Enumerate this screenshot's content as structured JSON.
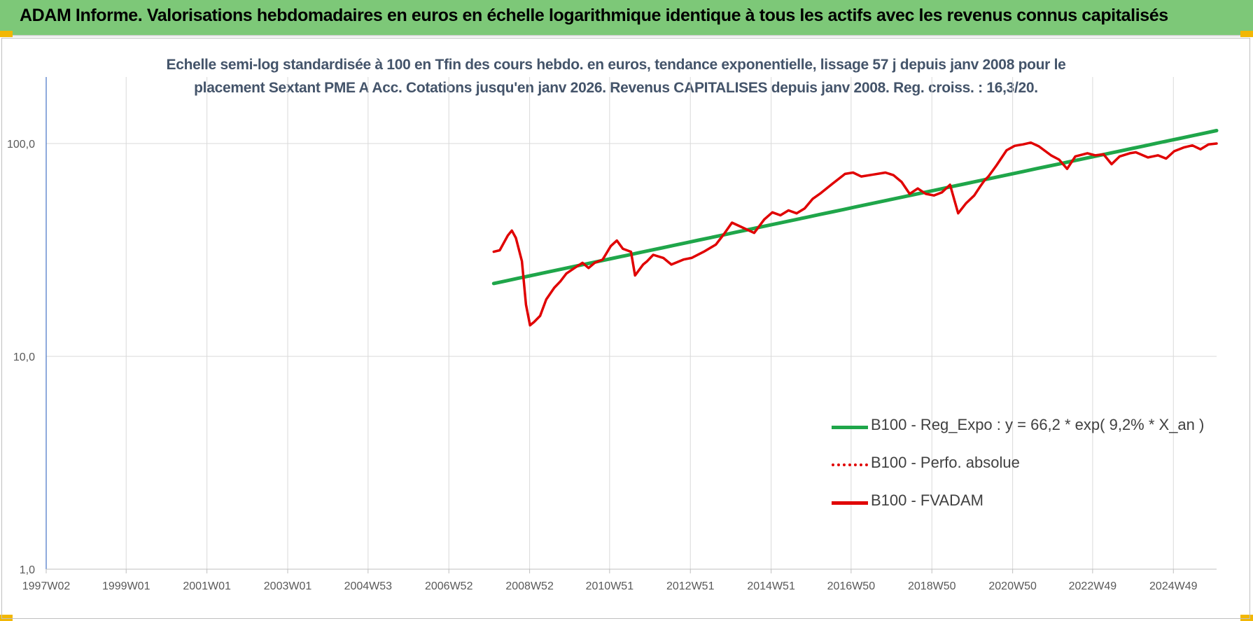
{
  "banner": {
    "title": "ADAM Informe. Valorisations hebdomadaires en euros en échelle logarithmique identique à tous les actifs avec les revenus connus capitalisés"
  },
  "colors": {
    "banner_bg": "#7dc878",
    "corner_accent": "#f2b705",
    "regression": "#1fa64a",
    "fvadam": "#e00000",
    "perf_absolue": "#e00000"
  },
  "chart_data": {
    "type": "line",
    "title_line1": "Echelle semi-log standardisée à 100 en Tfin des cours hebdo. en euros, tendance exponentielle, lissage 57 j depuis janv 2008 pour le",
    "title_line2": "placement Sextant PME A Acc. Cotations jusqu'en janv 2026. Revenus CAPITALISES depuis janv 2008. Reg. croiss. : 16,3/20.",
    "y_scale": "log",
    "ylim": [
      1,
      190
    ],
    "y_ticks": [
      {
        "value": 1,
        "label": "1,0"
      },
      {
        "value": 10,
        "label": "10,0"
      },
      {
        "value": 100,
        "label": "100,0"
      }
    ],
    "xlim": [
      1997.02,
      2026.0
    ],
    "x_ticks": [
      {
        "value": 1997.02,
        "label": "1997W02"
      },
      {
        "value": 1999.0,
        "label": "1999W01"
      },
      {
        "value": 2001.0,
        "label": "2001W01"
      },
      {
        "value": 2003.0,
        "label": "2003W01"
      },
      {
        "value": 2004.99,
        "label": "2004W53"
      },
      {
        "value": 2006.99,
        "label": "2006W52"
      },
      {
        "value": 2008.99,
        "label": "2008W52"
      },
      {
        "value": 2010.97,
        "label": "2010W51"
      },
      {
        "value": 2012.97,
        "label": "2012W51"
      },
      {
        "value": 2014.97,
        "label": "2014W51"
      },
      {
        "value": 2016.95,
        "label": "2016W50"
      },
      {
        "value": 2018.95,
        "label": "2018W50"
      },
      {
        "value": 2020.95,
        "label": "2020W50"
      },
      {
        "value": 2022.93,
        "label": "2022W49"
      },
      {
        "value": 2024.93,
        "label": "2024W49"
      }
    ],
    "grid": true,
    "legend_position": "bottom-right",
    "series": [
      {
        "name": "B100 - Reg_Expo : y = 66,2 * exp( 9,2% *  X_an )",
        "style": "solid-thick",
        "x": [
          2008.1,
          2026.0
        ],
        "y": [
          22.0,
          115.0
        ]
      },
      {
        "name": "B100 - Perfo. absolue",
        "style": "dotted",
        "x": [],
        "y": []
      },
      {
        "name": "B100 - FVADAM",
        "style": "solid",
        "x": [
          2008.1,
          2008.25,
          2008.45,
          2008.55,
          2008.65,
          2008.8,
          2008.9,
          2009.0,
          2009.1,
          2009.25,
          2009.4,
          2009.6,
          2009.75,
          2009.9,
          2010.1,
          2010.3,
          2010.45,
          2010.6,
          2010.8,
          2011.0,
          2011.15,
          2011.3,
          2011.5,
          2011.6,
          2011.8,
          2011.9,
          2012.05,
          2012.3,
          2012.5,
          2012.8,
          2013.0,
          2013.3,
          2013.6,
          2013.8,
          2014.0,
          2014.3,
          2014.55,
          2014.8,
          2015.0,
          2015.2,
          2015.4,
          2015.6,
          2015.8,
          2016.0,
          2016.2,
          2016.5,
          2016.8,
          2017.0,
          2017.2,
          2017.5,
          2017.8,
          2018.0,
          2018.2,
          2018.4,
          2018.6,
          2018.8,
          2019.0,
          2019.2,
          2019.4,
          2019.6,
          2019.8,
          2020.0,
          2020.15,
          2020.25,
          2020.35,
          2020.55,
          2020.8,
          2021.0,
          2021.2,
          2021.4,
          2021.6,
          2021.9,
          2022.1,
          2022.3,
          2022.5,
          2022.8,
          2023.0,
          2023.2,
          2023.4,
          2023.6,
          2023.85,
          2024.0,
          2024.3,
          2024.55,
          2024.75,
          2024.95,
          2025.2,
          2025.4,
          2025.6,
          2025.8,
          2026.0
        ],
        "y": [
          31.0,
          31.5,
          37.0,
          39.0,
          36.0,
          28.0,
          17.5,
          14.0,
          14.5,
          15.5,
          18.5,
          21.0,
          22.5,
          24.5,
          26.0,
          27.5,
          26.0,
          27.5,
          28.5,
          33.0,
          35.0,
          32.0,
          31.0,
          24.0,
          27.0,
          28.0,
          30.0,
          29.0,
          27.0,
          28.5,
          29.0,
          31.0,
          33.5,
          37.5,
          42.5,
          40.0,
          38.0,
          44.0,
          47.5,
          46.0,
          48.5,
          47.0,
          49.5,
          55.0,
          58.5,
          65.0,
          72.0,
          73.0,
          70.0,
          71.5,
          73.0,
          71.0,
          66.0,
          58.0,
          61.5,
          58.0,
          57.0,
          59.0,
          64.0,
          47.0,
          52.5,
          57.0,
          63.0,
          67.0,
          70.0,
          79.0,
          93.0,
          97.5,
          99.0,
          101.0,
          97.0,
          88.0,
          84.0,
          76.0,
          87.0,
          90.0,
          88.0,
          89.0,
          80.0,
          87.0,
          90.0,
          91.0,
          86.0,
          88.0,
          85.0,
          92.0,
          96.0,
          98.0,
          94.0,
          99.0,
          100.0
        ]
      }
    ]
  }
}
